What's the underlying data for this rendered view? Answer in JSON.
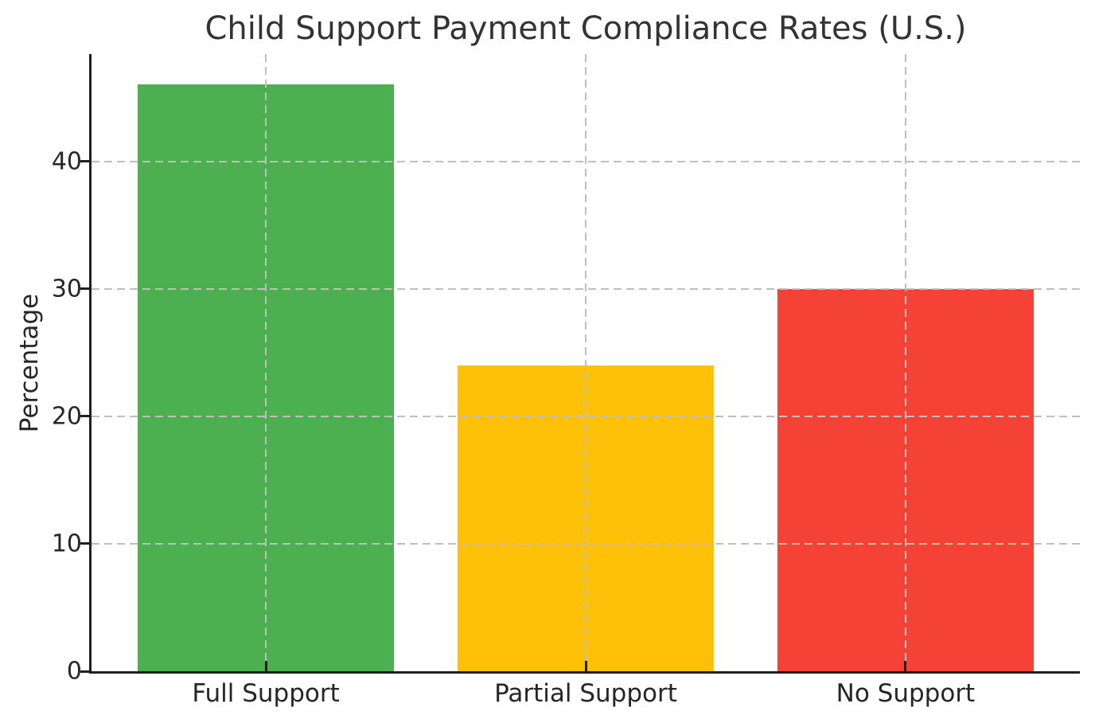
{
  "chart_data": {
    "type": "bar",
    "title": "Child Support Payment Compliance Rates (U.S.)",
    "xlabel": "",
    "ylabel": "Percentage",
    "categories": [
      "Full Support",
      "Partial Support",
      "No Support"
    ],
    "values": [
      46,
      24,
      30
    ],
    "bar_colors": [
      "#4caf50",
      "#ffc107",
      "#f44336"
    ],
    "yticks": [
      0,
      10,
      20,
      30,
      40
    ],
    "ytick_labels": [
      "0",
      "10",
      "20",
      "30",
      "40"
    ],
    "ylim": [
      0,
      48.4
    ],
    "grid": {
      "horizontal": true,
      "vertical": true,
      "style": "dashed",
      "color": "#bfbfbf",
      "drawn_above_bars": true
    },
    "legend": "none",
    "style_colors": {
      "spine": "#1f1f1f",
      "tick_mark": "#1f1f1f",
      "tick_label": "#262626",
      "title": "#333333",
      "background": "#ffffff"
    }
  }
}
